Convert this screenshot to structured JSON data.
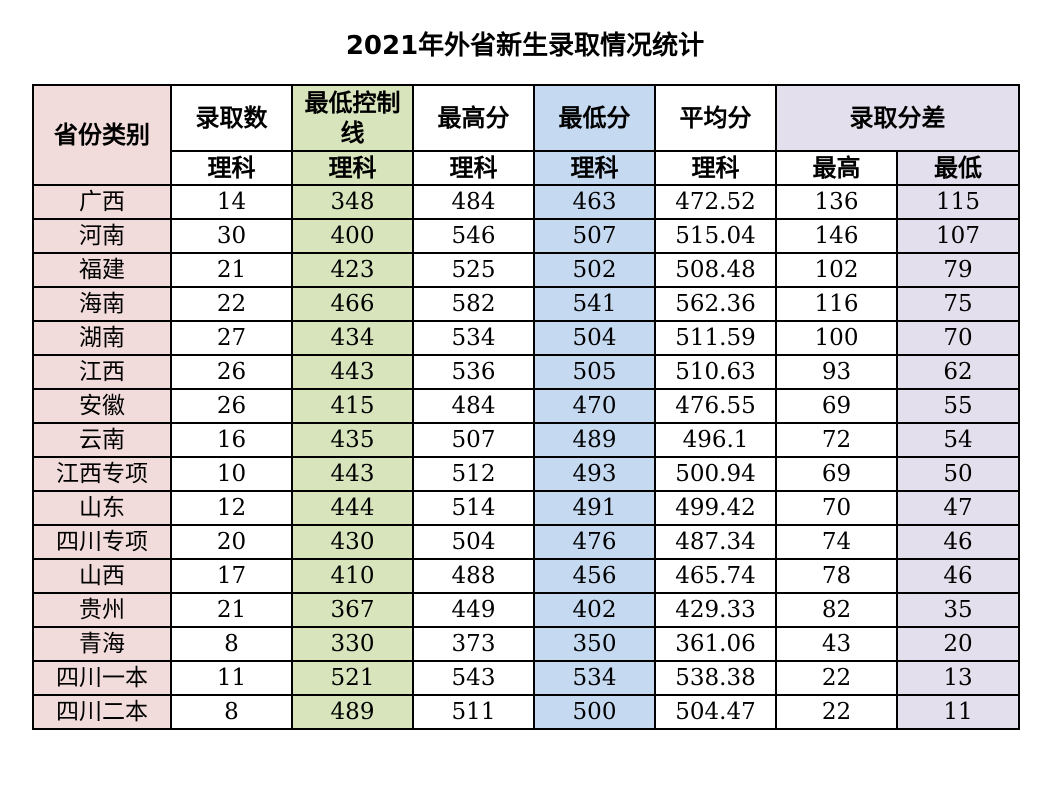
{
  "title": "2021年外省新生录取情况统计",
  "headers": {
    "province": "省份类别",
    "admitted": "录取数",
    "control_line": "最低控制线",
    "max_score": "最高分",
    "min_score": "最低分",
    "avg_score": "平均分",
    "diff": "录取分差",
    "science": "理科",
    "diff_max": "最高",
    "diff_min": "最低"
  },
  "colors": {
    "province_col": "#f1dcdb",
    "control_col": "#d8e4bc",
    "min_col": "#c5d9f1",
    "diff_col": "#e4dfec"
  },
  "rows": [
    {
      "province": "广西",
      "admitted": "14",
      "control": "348",
      "max": "484",
      "min": "463",
      "avg": "472.52",
      "diff_max": "136",
      "diff_min": "115"
    },
    {
      "province": "河南",
      "admitted": "30",
      "control": "400",
      "max": "546",
      "min": "507",
      "avg": "515.04",
      "diff_max": "146",
      "diff_min": "107"
    },
    {
      "province": "福建",
      "admitted": "21",
      "control": "423",
      "max": "525",
      "min": "502",
      "avg": "508.48",
      "diff_max": "102",
      "diff_min": "79"
    },
    {
      "province": "海南",
      "admitted": "22",
      "control": "466",
      "max": "582",
      "min": "541",
      "avg": "562.36",
      "diff_max": "116",
      "diff_min": "75"
    },
    {
      "province": "湖南",
      "admitted": "27",
      "control": "434",
      "max": "534",
      "min": "504",
      "avg": "511.59",
      "diff_max": "100",
      "diff_min": "70"
    },
    {
      "province": "江西",
      "admitted": "26",
      "control": "443",
      "max": "536",
      "min": "505",
      "avg": "510.63",
      "diff_max": "93",
      "diff_min": "62"
    },
    {
      "province": "安徽",
      "admitted": "26",
      "control": "415",
      "max": "484",
      "min": "470",
      "avg": "476.55",
      "diff_max": "69",
      "diff_min": "55"
    },
    {
      "province": "云南",
      "admitted": "16",
      "control": "435",
      "max": "507",
      "min": "489",
      "avg": "496.1",
      "diff_max": "72",
      "diff_min": "54"
    },
    {
      "province": "江西专项",
      "admitted": "10",
      "control": "443",
      "max": "512",
      "min": "493",
      "avg": "500.94",
      "diff_max": "69",
      "diff_min": "50"
    },
    {
      "province": "山东",
      "admitted": "12",
      "control": "444",
      "max": "514",
      "min": "491",
      "avg": "499.42",
      "diff_max": "70",
      "diff_min": "47"
    },
    {
      "province": "四川专项",
      "admitted": "20",
      "control": "430",
      "max": "504",
      "min": "476",
      "avg": "487.34",
      "diff_max": "74",
      "diff_min": "46"
    },
    {
      "province": "山西",
      "admitted": "17",
      "control": "410",
      "max": "488",
      "min": "456",
      "avg": "465.74",
      "diff_max": "78",
      "diff_min": "46"
    },
    {
      "province": "贵州",
      "admitted": "21",
      "control": "367",
      "max": "449",
      "min": "402",
      "avg": "429.33",
      "diff_max": "82",
      "diff_min": "35"
    },
    {
      "province": "青海",
      "admitted": "8",
      "control": "330",
      "max": "373",
      "min": "350",
      "avg": "361.06",
      "diff_max": "43",
      "diff_min": "20"
    },
    {
      "province": "四川一本",
      "admitted": "11",
      "control": "521",
      "max": "543",
      "min": "534",
      "avg": "538.38",
      "diff_max": "22",
      "diff_min": "13"
    },
    {
      "province": "四川二本",
      "admitted": "8",
      "control": "489",
      "max": "511",
      "min": "500",
      "avg": "504.47",
      "diff_max": "22",
      "diff_min": "11"
    }
  ]
}
